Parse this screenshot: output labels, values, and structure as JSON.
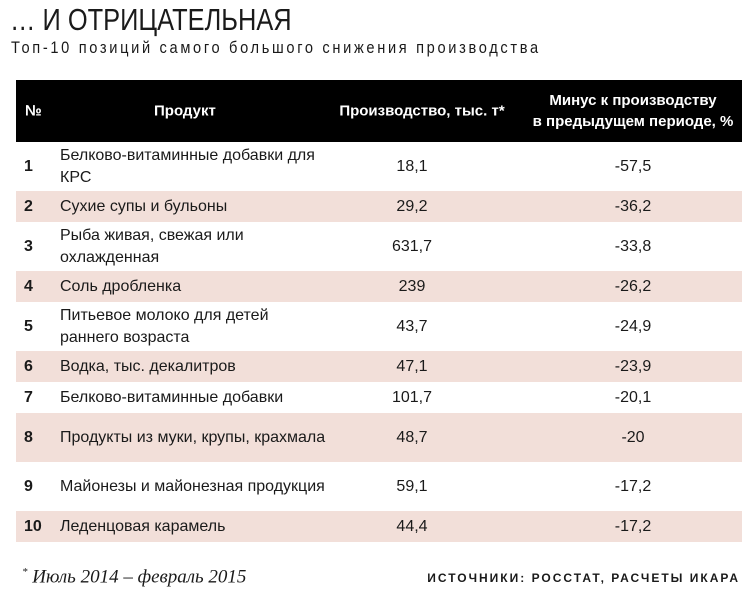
{
  "title": "… И ОТРИЦАТЕЛЬНАЯ",
  "subtitle": "Топ-10 позиций самого большого снижения производства",
  "table": {
    "headers": {
      "num": "№",
      "product": "Продукт",
      "production": "Производство, тыс. т*",
      "minus_line1": "Минус к производству",
      "minus_line2": "в предыдущем периоде, %"
    },
    "rows": [
      {
        "num": "1",
        "product": "Белково-витаминные добавки для КРС",
        "production": "18,1",
        "minus": "-57,5"
      },
      {
        "num": "2",
        "product": "Сухие супы и бульоны",
        "production": "29,2",
        "minus": "-36,2"
      },
      {
        "num": "3",
        "product": "Рыба живая, свежая или охлажденная",
        "production": "631,7",
        "minus": "-33,8"
      },
      {
        "num": "4",
        "product": "Соль дробленка",
        "production": "239",
        "minus": "-26,2"
      },
      {
        "num": "5",
        "product": "Питьевое молоко для детей раннего возраста",
        "production": "43,7",
        "minus": "-24,9"
      },
      {
        "num": "6",
        "product": "Водка, тыс. декалитров",
        "production": "47,1",
        "minus": "-23,9"
      },
      {
        "num": "7",
        "product": "Белково-витаминные добавки",
        "production": "101,7",
        "minus": "-20,1"
      },
      {
        "num": "8",
        "product": "Продукты из муки, крупы, крахмала",
        "production": "48,7",
        "minus": "-20"
      },
      {
        "num": "9",
        "product": "Майонезы и майонезная продукция",
        "production": "59,1",
        "minus": "-17,2"
      },
      {
        "num": "10",
        "product": "Леденцовая карамель",
        "production": "44,4",
        "minus": "-17,2"
      }
    ]
  },
  "footnote": {
    "mark": "*",
    "text": "Июль 2014 – февраль 2015"
  },
  "source": "ИСТОЧНИКИ: РОССТАТ, РАСЧЕТЫ ИКАРА",
  "colors": {
    "header_bg": "#000000",
    "stripe": "#f2dfd9"
  }
}
